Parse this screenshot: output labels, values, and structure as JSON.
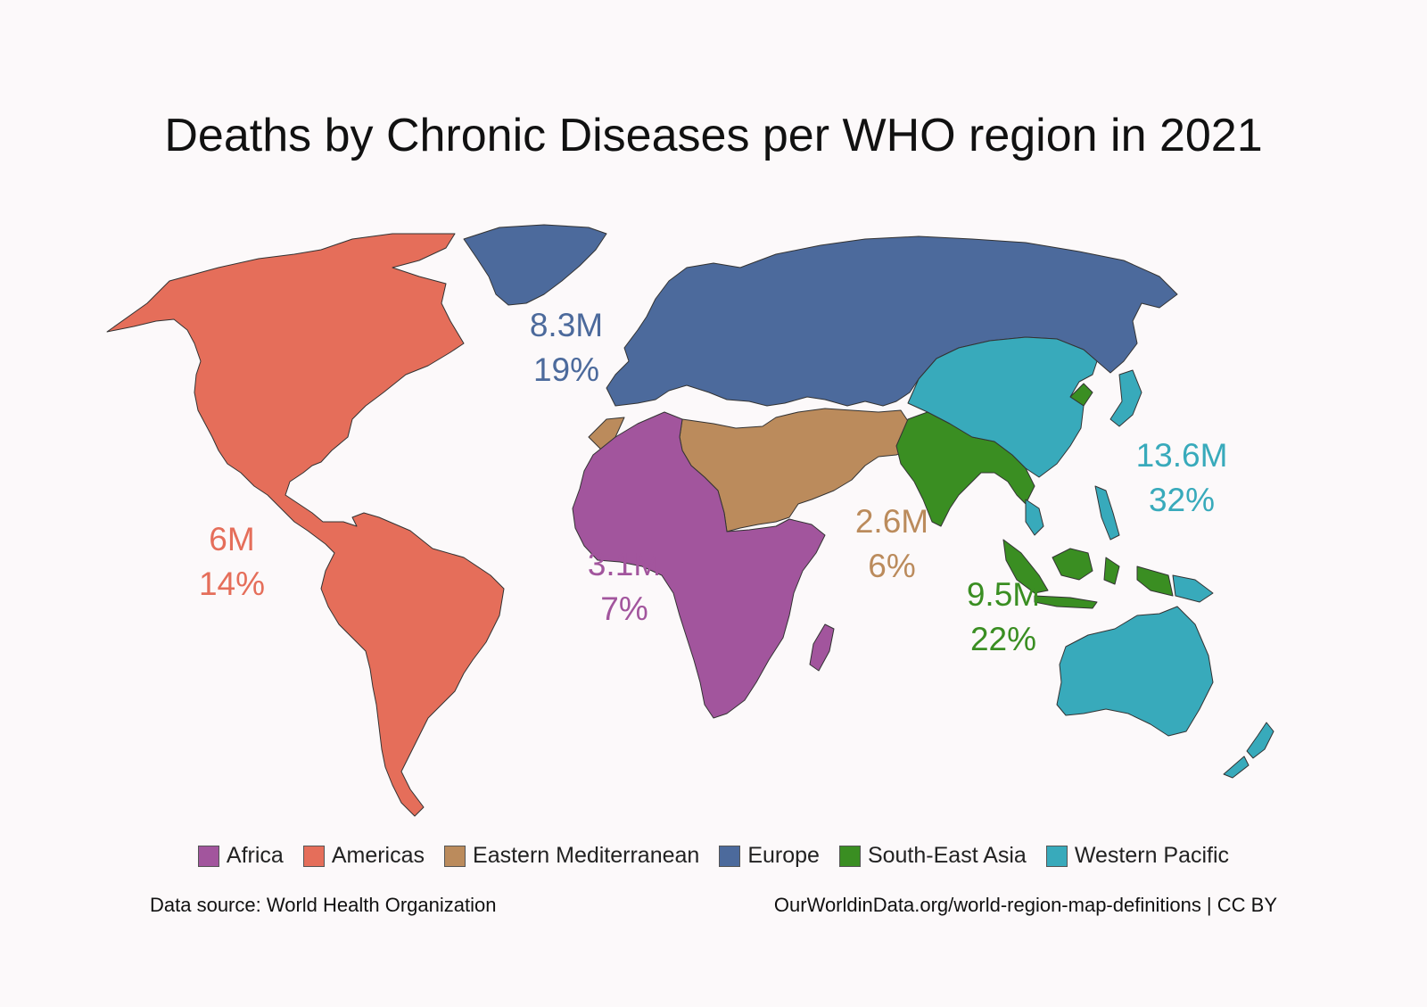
{
  "title": "Deaths by Chronic Diseases per WHO region in 2021",
  "colors": {
    "africa": "#a2559d",
    "americas": "#e56e5a",
    "eastern_mediterranean": "#bb8b5c",
    "europe": "#4c6a9c",
    "south_east_asia": "#3a8e22",
    "western_pacific": "#38aabb",
    "border": "#333333"
  },
  "regions": [
    {
      "key": "americas",
      "name": "Americas",
      "deaths": "6M",
      "share": "14%"
    },
    {
      "key": "europe",
      "name": "Europe",
      "deaths": "8.3M",
      "share": "19%"
    },
    {
      "key": "africa",
      "name": "Africa",
      "deaths": "3.1M",
      "share": "7%"
    },
    {
      "key": "eastern_mediterranean",
      "name": "Eastern Mediterranean",
      "deaths": "2.6M",
      "share": "6%"
    },
    {
      "key": "south_east_asia",
      "name": "South-East Asia",
      "deaths": "9.5M",
      "share": "22%"
    },
    {
      "key": "western_pacific",
      "name": "Western Pacific",
      "deaths": "13.6M",
      "share": "32%"
    }
  ],
  "legend": [
    "Africa",
    "Americas",
    "Eastern Mediterranean",
    "Europe",
    "South-East Asia",
    "Western Pacific"
  ],
  "footer": {
    "source": "Data source: World Health Organization",
    "credit": "OurWorldinData.org/world-region-map-definitions | CC BY"
  }
}
